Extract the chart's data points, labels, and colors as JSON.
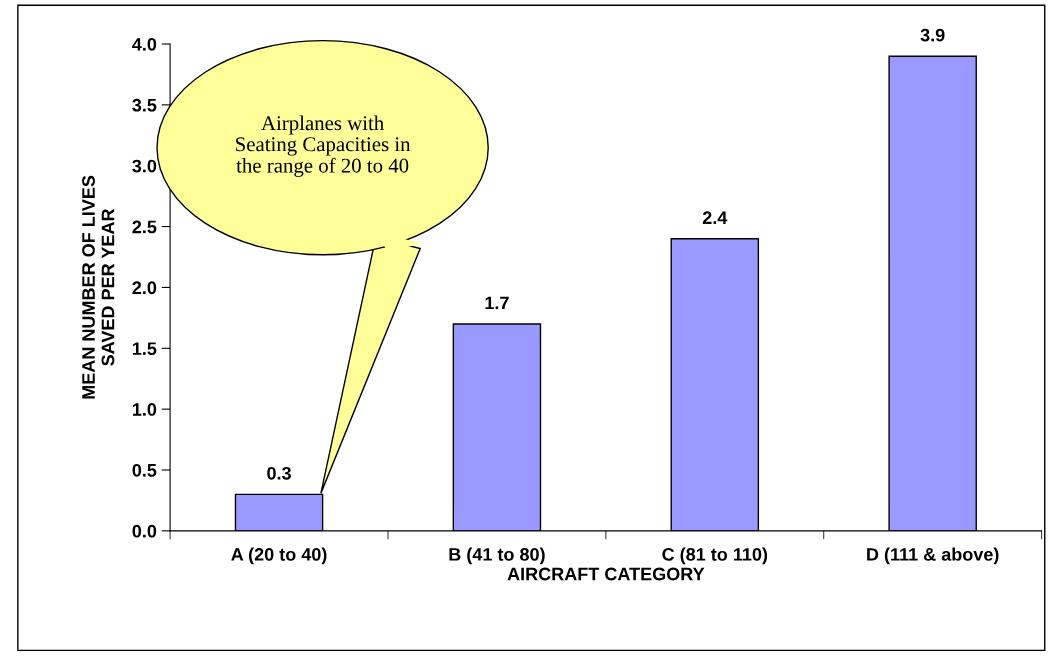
{
  "chart_data": {
    "type": "bar",
    "xlabel": "AIRCRAFT CATEGORY",
    "ylabel": "MEAN NUMBER OF LIVES\nSAVED PER YEAR",
    "categories": [
      "A (20 to 40)",
      "B (41 to 80)",
      "C (81 to 110)",
      "D (111 & above)"
    ],
    "values": [
      0.3,
      1.7,
      2.4,
      3.9
    ],
    "color": "#9999ff",
    "data_labels": true,
    "ylim": [
      0,
      4.0
    ],
    "yticks": [
      {
        "value": 0,
        "label": "0.0"
      },
      {
        "value": 0.5,
        "label": "0.5"
      },
      {
        "value": 1.0,
        "label": "1.0"
      },
      {
        "value": 1.5,
        "label": "1.5"
      },
      {
        "value": 2.0,
        "label": "2.0"
      },
      {
        "value": 2.5,
        "label": "2.5"
      },
      {
        "value": 3.0,
        "label": "3.0"
      },
      {
        "value": 3.5,
        "label": "3.5"
      },
      {
        "value": 4.0,
        "label": "4.0"
      }
    ],
    "grid": false,
    "annotations": [
      "Airplanes with\nSeating Capacities in\nthe range of 20 to 40"
    ]
  }
}
